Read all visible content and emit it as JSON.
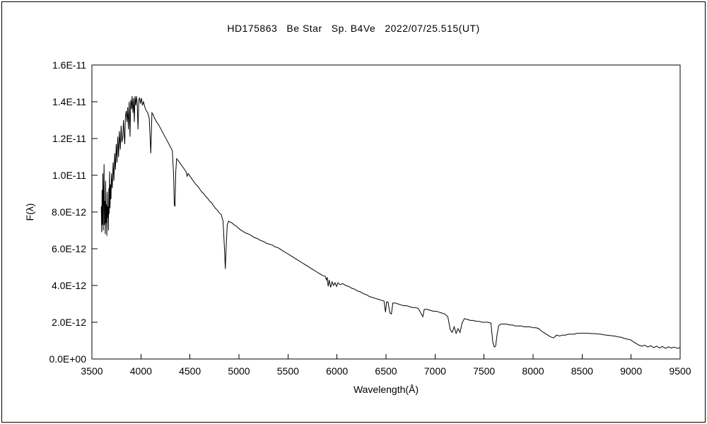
{
  "figure": {
    "background_color": "#ffffff",
    "border_color": "#000000"
  },
  "chart_data": {
    "type": "line",
    "title": "HD175863   Be Star   Sp. B4Ve   2022/07/25.515(UT)",
    "xlabel": "Wavelength(Å)",
    "ylabel": "F(λ)",
    "line_color": "#000000",
    "grid": false,
    "legend": "none",
    "xlim": [
      3500,
      9500
    ],
    "ylim_flux": [
      0,
      1.6e-11
    ],
    "flux_unit_scale": 1e-12,
    "ylim_scaled": [
      0,
      16
    ],
    "x_ticks": [
      3500,
      4000,
      4500,
      5000,
      5500,
      6000,
      6500,
      7000,
      7500,
      8000,
      8500,
      9000,
      9500
    ],
    "y_ticks": [
      {
        "v": 0,
        "label": "0.0E+00"
      },
      {
        "v": 2,
        "label": "2.0E-12"
      },
      {
        "v": 4,
        "label": "4.0E-12"
      },
      {
        "v": 6,
        "label": "6.0E-12"
      },
      {
        "v": 8,
        "label": "8.0E-12"
      },
      {
        "v": 10,
        "label": "1.0E-11"
      },
      {
        "v": 12,
        "label": "1.2E-11"
      },
      {
        "v": 14,
        "label": "1.4E-11"
      },
      {
        "v": 16,
        "label": "1.6E-11"
      }
    ],
    "points_units": "[wavelength_angstrom, flux_in_1e-12]",
    "points": [
      [
        3595,
        8.3
      ],
      [
        3600,
        6.9
      ],
      [
        3604,
        9.2
      ],
      [
        3608,
        7.3
      ],
      [
        3612,
        10.1
      ],
      [
        3616,
        7.0
      ],
      [
        3620,
        8.9
      ],
      [
        3624,
        10.6
      ],
      [
        3628,
        7.3
      ],
      [
        3632,
        8.6
      ],
      [
        3636,
        6.8
      ],
      [
        3640,
        9.7
      ],
      [
        3644,
        7.4
      ],
      [
        3648,
        8.4
      ],
      [
        3652,
        6.7
      ],
      [
        3656,
        9.1
      ],
      [
        3660,
        7.7
      ],
      [
        3664,
        8.3
      ],
      [
        3668,
        7.0
      ],
      [
        3672,
        9.3
      ],
      [
        3676,
        7.9
      ],
      [
        3680,
        10.2
      ],
      [
        3685,
        8.2
      ],
      [
        3690,
        9.5
      ],
      [
        3695,
        8.7
      ],
      [
        3700,
        10.1
      ],
      [
        3708,
        9.3
      ],
      [
        3716,
        10.7
      ],
      [
        3724,
        9.7
      ],
      [
        3732,
        11.2
      ],
      [
        3740,
        10.3
      ],
      [
        3748,
        11.7
      ],
      [
        3756,
        10.7
      ],
      [
        3764,
        12.1
      ],
      [
        3772,
        11.0
      ],
      [
        3780,
        12.4
      ],
      [
        3790,
        11.4
      ],
      [
        3798,
        12.7
      ],
      [
        3806,
        11.8
      ],
      [
        3815,
        12.1
      ],
      [
        3822,
        13.0
      ],
      [
        3830,
        12.1
      ],
      [
        3835,
        11.7
      ],
      [
        3842,
        13.2
      ],
      [
        3850,
        13.5
      ],
      [
        3858,
        12.9
      ],
      [
        3865,
        13.7
      ],
      [
        3872,
        12.5
      ],
      [
        3880,
        14.0
      ],
      [
        3889,
        12.1
      ],
      [
        3896,
        14.1
      ],
      [
        3903,
        13.6
      ],
      [
        3910,
        14.3
      ],
      [
        3918,
        13.4
      ],
      [
        3926,
        14.2
      ],
      [
        3933,
        12.9
      ],
      [
        3940,
        14.3
      ],
      [
        3948,
        13.8
      ],
      [
        3955,
        14.3
      ],
      [
        3962,
        13.9
      ],
      [
        3970,
        12.5
      ],
      [
        3978,
        14.1
      ],
      [
        3986,
        14.2
      ],
      [
        3995,
        13.9
      ],
      [
        4005,
        14.2
      ],
      [
        4015,
        13.8
      ],
      [
        4026,
        14.0
      ],
      [
        4040,
        13.7
      ],
      [
        4055,
        13.5
      ],
      [
        4070,
        13.4
      ],
      [
        4085,
        13.1
      ],
      [
        4101,
        11.2
      ],
      [
        4112,
        13.4
      ],
      [
        4125,
        13.3
      ],
      [
        4140,
        13.1
      ],
      [
        4160,
        12.9
      ],
      [
        4180,
        12.75
      ],
      [
        4200,
        12.55
      ],
      [
        4225,
        12.3
      ],
      [
        4250,
        12.05
      ],
      [
        4275,
        11.8
      ],
      [
        4300,
        11.55
      ],
      [
        4320,
        11.35
      ],
      [
        4334,
        10.0
      ],
      [
        4340,
        8.4
      ],
      [
        4347,
        8.3
      ],
      [
        4355,
        10.2
      ],
      [
        4365,
        10.9
      ],
      [
        4380,
        10.8
      ],
      [
        4400,
        10.65
      ],
      [
        4420,
        10.5
      ],
      [
        4440,
        10.35
      ],
      [
        4460,
        10.2
      ],
      [
        4471,
        9.95
      ],
      [
        4482,
        10.1
      ],
      [
        4500,
        9.95
      ],
      [
        4520,
        9.8
      ],
      [
        4540,
        9.65
      ],
      [
        4560,
        9.5
      ],
      [
        4580,
        9.4
      ],
      [
        4600,
        9.25
      ],
      [
        4620,
        9.1
      ],
      [
        4640,
        9.0
      ],
      [
        4660,
        8.85
      ],
      [
        4680,
        8.75
      ],
      [
        4700,
        8.6
      ],
      [
        4720,
        8.5
      ],
      [
        4740,
        8.35
      ],
      [
        4760,
        8.2
      ],
      [
        4780,
        8.1
      ],
      [
        4800,
        7.95
      ],
      [
        4820,
        7.85
      ],
      [
        4838,
        7.5
      ],
      [
        4852,
        6.0
      ],
      [
        4861,
        4.9
      ],
      [
        4870,
        6.2
      ],
      [
        4880,
        7.3
      ],
      [
        4895,
        7.5
      ],
      [
        4910,
        7.45
      ],
      [
        4930,
        7.4
      ],
      [
        4950,
        7.3
      ],
      [
        4970,
        7.25
      ],
      [
        4990,
        7.15
      ],
      [
        5010,
        7.05
      ],
      [
        5040,
        6.95
      ],
      [
        5070,
        6.85
      ],
      [
        5100,
        6.8
      ],
      [
        5130,
        6.7
      ],
      [
        5160,
        6.6
      ],
      [
        5190,
        6.55
      ],
      [
        5220,
        6.45
      ],
      [
        5250,
        6.4
      ],
      [
        5280,
        6.3
      ],
      [
        5310,
        6.25
      ],
      [
        5340,
        6.2
      ],
      [
        5370,
        6.1
      ],
      [
        5400,
        6.05
      ],
      [
        5430,
        5.95
      ],
      [
        5460,
        5.85
      ],
      [
        5490,
        5.75
      ],
      [
        5520,
        5.65
      ],
      [
        5550,
        5.55
      ],
      [
        5580,
        5.45
      ],
      [
        5610,
        5.35
      ],
      [
        5640,
        5.25
      ],
      [
        5670,
        5.15
      ],
      [
        5700,
        5.05
      ],
      [
        5730,
        4.95
      ],
      [
        5760,
        4.85
      ],
      [
        5790,
        4.75
      ],
      [
        5820,
        4.65
      ],
      [
        5850,
        4.55
      ],
      [
        5880,
        4.5
      ],
      [
        5892,
        4.3
      ],
      [
        5900,
        4.45
      ],
      [
        5910,
        3.95
      ],
      [
        5920,
        4.3
      ],
      [
        5935,
        3.9
      ],
      [
        5950,
        4.2
      ],
      [
        5965,
        4.0
      ],
      [
        5980,
        4.15
      ],
      [
        5995,
        3.95
      ],
      [
        6010,
        4.15
      ],
      [
        6030,
        4.05
      ],
      [
        6060,
        4.1
      ],
      [
        6090,
        4.0
      ],
      [
        6120,
        3.95
      ],
      [
        6150,
        3.85
      ],
      [
        6180,
        3.8
      ],
      [
        6210,
        3.7
      ],
      [
        6240,
        3.65
      ],
      [
        6270,
        3.55
      ],
      [
        6300,
        3.5
      ],
      [
        6330,
        3.4
      ],
      [
        6360,
        3.35
      ],
      [
        6390,
        3.3
      ],
      [
        6420,
        3.25
      ],
      [
        6450,
        3.2
      ],
      [
        6480,
        3.15
      ],
      [
        6495,
        2.55
      ],
      [
        6505,
        3.1
      ],
      [
        6520,
        3.1
      ],
      [
        6540,
        2.5
      ],
      [
        6555,
        2.45
      ],
      [
        6570,
        3.05
      ],
      [
        6590,
        3.05
      ],
      [
        6620,
        3.0
      ],
      [
        6650,
        2.95
      ],
      [
        6680,
        2.9
      ],
      [
        6710,
        2.9
      ],
      [
        6740,
        2.85
      ],
      [
        6770,
        2.8
      ],
      [
        6800,
        2.8
      ],
      [
        6830,
        2.75
      ],
      [
        6860,
        2.45
      ],
      [
        6875,
        2.3
      ],
      [
        6890,
        2.7
      ],
      [
        6920,
        2.7
      ],
      [
        6950,
        2.65
      ],
      [
        6980,
        2.6
      ],
      [
        7010,
        2.6
      ],
      [
        7040,
        2.55
      ],
      [
        7070,
        2.5
      ],
      [
        7100,
        2.45
      ],
      [
        7130,
        2.3
      ],
      [
        7155,
        1.6
      ],
      [
        7175,
        1.45
      ],
      [
        7195,
        1.75
      ],
      [
        7215,
        1.4
      ],
      [
        7235,
        1.65
      ],
      [
        7255,
        1.45
      ],
      [
        7275,
        1.95
      ],
      [
        7300,
        2.2
      ],
      [
        7330,
        2.15
      ],
      [
        7360,
        2.1
      ],
      [
        7390,
        2.1
      ],
      [
        7420,
        2.05
      ],
      [
        7450,
        2.05
      ],
      [
        7480,
        2.0
      ],
      [
        7510,
        2.0
      ],
      [
        7540,
        2.0
      ],
      [
        7570,
        1.95
      ],
      [
        7590,
        0.9
      ],
      [
        7605,
        0.65
      ],
      [
        7618,
        0.7
      ],
      [
        7632,
        1.3
      ],
      [
        7648,
        1.8
      ],
      [
        7670,
        1.9
      ],
      [
        7700,
        1.9
      ],
      [
        7730,
        1.9
      ],
      [
        7760,
        1.85
      ],
      [
        7790,
        1.85
      ],
      [
        7820,
        1.8
      ],
      [
        7850,
        1.8
      ],
      [
        7880,
        1.8
      ],
      [
        7910,
        1.75
      ],
      [
        7940,
        1.75
      ],
      [
        7970,
        1.75
      ],
      [
        8000,
        1.7
      ],
      [
        8030,
        1.7
      ],
      [
        8060,
        1.65
      ],
      [
        8090,
        1.5
      ],
      [
        8120,
        1.4
      ],
      [
        8150,
        1.3
      ],
      [
        8180,
        1.2
      ],
      [
        8210,
        1.15
      ],
      [
        8240,
        1.3
      ],
      [
        8270,
        1.25
      ],
      [
        8300,
        1.3
      ],
      [
        8330,
        1.3
      ],
      [
        8360,
        1.35
      ],
      [
        8390,
        1.35
      ],
      [
        8420,
        1.35
      ],
      [
        8450,
        1.4
      ],
      [
        8480,
        1.4
      ],
      [
        8510,
        1.4
      ],
      [
        8540,
        1.4
      ],
      [
        8570,
        1.4
      ],
      [
        8600,
        1.38
      ],
      [
        8630,
        1.38
      ],
      [
        8660,
        1.36
      ],
      [
        8690,
        1.35
      ],
      [
        8720,
        1.32
      ],
      [
        8750,
        1.3
      ],
      [
        8780,
        1.28
      ],
      [
        8810,
        1.26
      ],
      [
        8840,
        1.24
      ],
      [
        8870,
        1.2
      ],
      [
        8900,
        1.18
      ],
      [
        8930,
        1.12
      ],
      [
        8960,
        1.08
      ],
      [
        8990,
        1.05
      ],
      [
        9020,
        0.95
      ],
      [
        9050,
        0.85
      ],
      [
        9080,
        0.75
      ],
      [
        9110,
        0.7
      ],
      [
        9140,
        0.75
      ],
      [
        9170,
        0.65
      ],
      [
        9200,
        0.72
      ],
      [
        9230,
        0.62
      ],
      [
        9260,
        0.7
      ],
      [
        9290,
        0.6
      ],
      [
        9320,
        0.68
      ],
      [
        9350,
        0.58
      ],
      [
        9380,
        0.66
      ],
      [
        9410,
        0.6
      ],
      [
        9440,
        0.65
      ],
      [
        9470,
        0.58
      ],
      [
        9500,
        0.62
      ]
    ]
  }
}
